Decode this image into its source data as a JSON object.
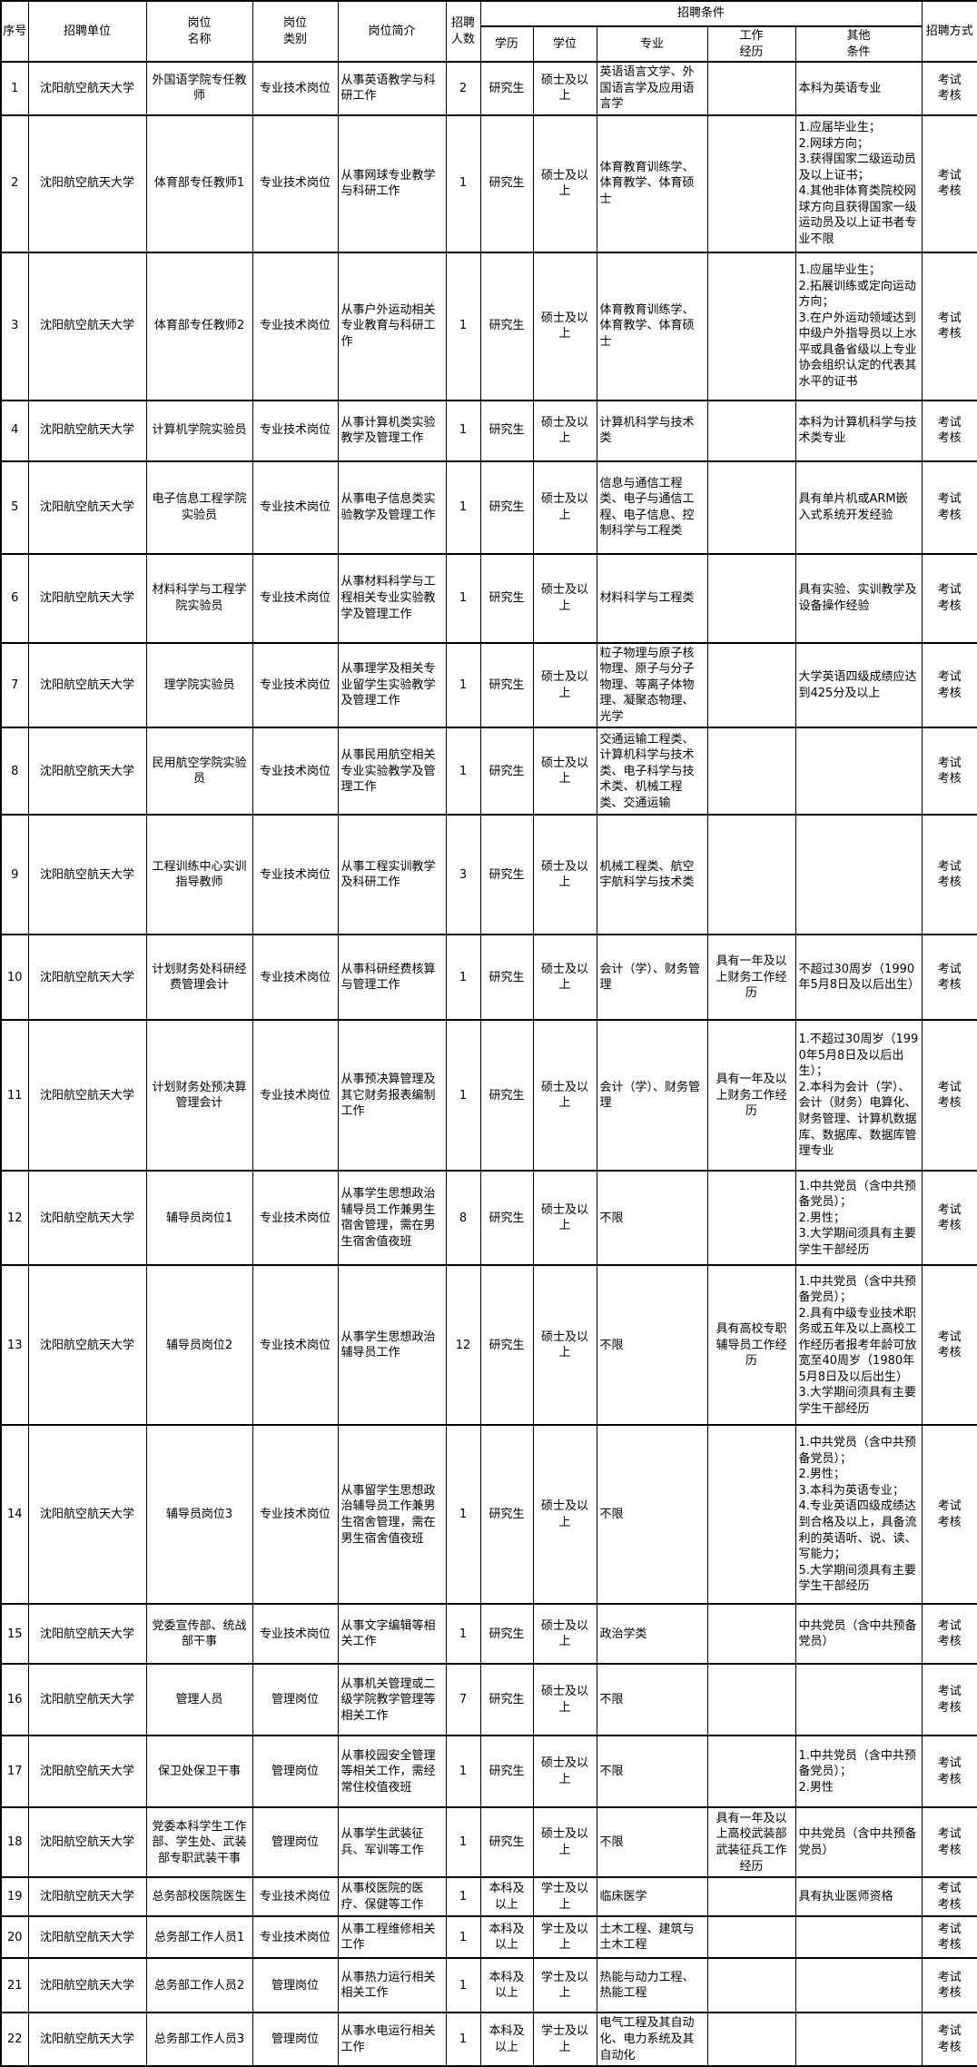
{
  "colors": {
    "background": "#ffffff",
    "border": "#000000",
    "text": "#000000"
  },
  "table": {
    "header": {
      "seq": "序号",
      "unit": "招聘单位",
      "post": "岗位\n名称",
      "category": "岗位\n类别",
      "desc": "岗位简介",
      "count": "招聘\n人数",
      "conditions_group": "招聘条件",
      "edu": "学历",
      "degree": "学位",
      "major": "专业",
      "exp": "工作\n经历",
      "other": "其他\n条件",
      "method": "招聘方式"
    },
    "rows": [
      {
        "seq": "1",
        "unit": "沈阳航空航天大学",
        "post": "外国语学院专任教师",
        "category": "专业技术岗位",
        "desc": "从事英语教学与科研工作",
        "count": "2",
        "edu": "研究生",
        "degree": "硕士及以上",
        "major": "英语语言文学、外国语言学及应用语言学",
        "exp": "",
        "other": "本科为英语专业",
        "method": "考试\n考核"
      },
      {
        "seq": "2",
        "unit": "沈阳航空航天大学",
        "post": "体育部专任教师1",
        "category": "专业技术岗位",
        "desc": "从事网球专业教学与科研工作",
        "count": "1",
        "edu": "研究生",
        "degree": "硕士及以上",
        "major": "体育教育训练学、体育教学、体育硕士",
        "exp": "",
        "other": "1.应届毕业生；\n2.网球方向；\n3.获得国家二级运动员及以上证书；\n4.其他非体育类院校网球方向且获得国家一级运动员及以上证书者专业不限",
        "method": "考试\n考核"
      },
      {
        "seq": "3",
        "unit": "沈阳航空航天大学",
        "post": "体育部专任教师2",
        "category": "专业技术岗位",
        "desc": "从事户外运动相关专业教育与科研工作",
        "count": "1",
        "edu": "研究生",
        "degree": "硕士及以上",
        "major": "体育教育训练学、体育教学、体育硕士",
        "exp": "",
        "other": "1.应届毕业生；\n2.拓展训练或定向运动方向；\n3.在户外运动领域达到中级户外指导员以上水平或具备省级以上专业协会组织认定的代表其水平的证书",
        "method": "考试\n考核"
      },
      {
        "seq": "4",
        "unit": "沈阳航空航天大学",
        "post": "计算机学院实验员",
        "category": "专业技术岗位",
        "desc": "从事计算机类实验教学及管理工作",
        "count": "1",
        "edu": "研究生",
        "degree": "硕士及以上",
        "major": "计算机科学与技术类",
        "exp": "",
        "other": "本科为计算机科学与技术类专业",
        "method": "考试\n考核"
      },
      {
        "seq": "5",
        "unit": "沈阳航空航天大学",
        "post": "电子信息工程学院实验员",
        "category": "专业技术岗位",
        "desc": "从事电子信息类实验教学及管理工作",
        "count": "1",
        "edu": "研究生",
        "degree": "硕士及以上",
        "major": "信息与通信工程类、电子与通信工程、电子信息、控制科学与工程类",
        "exp": "",
        "other": "具有单片机或ARM嵌入式系统开发经验",
        "method": "考试\n考核"
      },
      {
        "seq": "6",
        "unit": "沈阳航空航天大学",
        "post": "材料科学与工程学院实验员",
        "category": "专业技术岗位",
        "desc": "从事材料科学与工程相关专业实验教学及管理工作",
        "count": "1",
        "edu": "研究生",
        "degree": "硕士及以上",
        "major": "材料科学与工程类",
        "exp": "",
        "other": "具有实验、实训教学及设备操作经验",
        "method": "考试\n考核"
      },
      {
        "seq": "7",
        "unit": "沈阳航空航天大学",
        "post": "理学院实验员",
        "category": "专业技术岗位",
        "desc": "从事理学及相关专业留学生实验教学及管理工作",
        "count": "1",
        "edu": "研究生",
        "degree": "硕士及以上",
        "major": "粒子物理与原子核物理、原子与分子物理、等离子体物理、凝聚态物理、光学",
        "exp": "",
        "other": "大学英语四级成绩应达到425分及以上",
        "method": "考试\n考核"
      },
      {
        "seq": "8",
        "unit": "沈阳航空航天大学",
        "post": "民用航空学院实验员",
        "category": "专业技术岗位",
        "desc": "从事民用航空相关专业实验教学及管理工作",
        "count": "1",
        "edu": "研究生",
        "degree": "硕士及以上",
        "major": "交通运输工程类、计算机科学与技术类、电子科学与技术类、机械工程类、交通运输",
        "exp": "",
        "other": "",
        "method": "考试\n考核"
      },
      {
        "seq": "9",
        "unit": "沈阳航空航天大学",
        "post": "工程训练中心实训指导教师",
        "category": "专业技术岗位",
        "desc": "从事工程实训教学及科研工作",
        "count": "3",
        "edu": "研究生",
        "degree": "硕士及以上",
        "major": "机械工程类、航空宇航科学与技术类",
        "exp": "",
        "other": "",
        "method": "考试\n考核"
      },
      {
        "seq": "10",
        "unit": "沈阳航空航天大学",
        "post": "计划财务处科研经费管理会计",
        "category": "专业技术岗位",
        "desc": "从事科研经费核算与管理工作",
        "count": "1",
        "edu": "研究生",
        "degree": "硕士及以上",
        "major": "会计（学）、财务管理",
        "exp": "具有一年及以上财务工作经历",
        "other": "不超过30周岁（1990年5月8日及以后出生）",
        "method": "考试\n考核"
      },
      {
        "seq": "11",
        "unit": "沈阳航空航天大学",
        "post": "计划财务处预决算管理会计",
        "category": "专业技术岗位",
        "desc": "从事预决算管理及其它财务报表编制工作",
        "count": "1",
        "edu": "研究生",
        "degree": "硕士及以上",
        "major": "会计（学）、财务管理",
        "exp": "具有一年及以上财务工作经历",
        "other": "1.不超过30周岁（1990年5月8日及以后出生）；\n2.本科为会计（学）、会计（财务）电算化、财务管理、计算机数据库、数据库、数据库管理专业",
        "method": "考试\n考核"
      },
      {
        "seq": "12",
        "unit": "沈阳航空航天大学",
        "post": "辅导员岗位1",
        "category": "专业技术岗位",
        "desc": "从事学生思想政治辅导员工作兼男生宿舍管理，需在男生宿舍值夜班",
        "count": "8",
        "edu": "研究生",
        "degree": "硕士及以上",
        "major": "不限",
        "exp": "",
        "other": "1.中共党员（含中共预备党员）；\n2.男性；\n3.大学期间须具有主要学生干部经历",
        "method": "考试\n考核"
      },
      {
        "seq": "13",
        "unit": "沈阳航空航天大学",
        "post": "辅导员岗位2",
        "category": "专业技术岗位",
        "desc": "从事学生思想政治辅导员工作",
        "count": "12",
        "edu": "研究生",
        "degree": "硕士及以上",
        "major": "不限",
        "exp": "具有高校专职辅导员工作经历",
        "other": "1.中共党员（含中共预备党员）；\n2.具有中级专业技术职务或五年及以上高校工作经历者报考年龄可放宽至40周岁（1980年5月8日及以后出生）\n3.大学期间须具有主要学生干部经历",
        "method": "考试\n考核"
      },
      {
        "seq": "14",
        "unit": "沈阳航空航天大学",
        "post": "辅导员岗位3",
        "category": "专业技术岗位",
        "desc": "从事留学生思想政治辅导员工作兼男生宿舍管理，需在男生宿舍值夜班",
        "count": "1",
        "edu": "研究生",
        "degree": "硕士及以上",
        "major": "不限",
        "exp": "",
        "other": "1.中共党员（含中共预备党员）；\n2.男性；\n3.本科为英语专业；\n4.专业英语四级成绩达到合格及以上，具备流利的英语听、说、读、写能力；\n5.大学期间须具有主要学生干部经历",
        "method": "考试\n考核"
      },
      {
        "seq": "15",
        "unit": "沈阳航空航天大学",
        "post": "党委宣传部、统战部干事",
        "category": "专业技术岗位",
        "desc": "从事文字编辑等相关工作",
        "count": "1",
        "edu": "研究生",
        "degree": "硕士及以上",
        "major": "政治学类",
        "exp": "",
        "other": "中共党员（含中共预备党员）",
        "method": "考试\n考核"
      },
      {
        "seq": "16",
        "unit": "沈阳航空航天大学",
        "post": "管理人员",
        "category": "管理岗位",
        "desc": "从事机关管理或二级学院教学管理等相关工作",
        "count": "7",
        "edu": "研究生",
        "degree": "硕士及以上",
        "major": "不限",
        "exp": "",
        "other": "",
        "method": "考试\n考核"
      },
      {
        "seq": "17",
        "unit": "沈阳航空航天大学",
        "post": "保卫处保卫干事",
        "category": "管理岗位",
        "desc": "从事校园安全管理等相关工作，需经常住校值夜班",
        "count": "1",
        "edu": "研究生",
        "degree": "硕士及以上",
        "major": "不限",
        "exp": "",
        "other": "1.中共党员（含中共预备党员）；\n2.男性",
        "method": "考试\n考核"
      },
      {
        "seq": "18",
        "unit": "沈阳航空航天大学",
        "post": "党委本科学生工作部、学生处、武装部专职武装干事",
        "category": "管理岗位",
        "desc": "从事学生武装征兵、军训等工作",
        "count": "1",
        "edu": "研究生",
        "degree": "硕士及以上",
        "major": "不限",
        "exp": "具有一年及以上高校武装部武装征兵工作经历",
        "other": "中共党员（含中共预备党员）",
        "method": "考试\n考核"
      },
      {
        "seq": "19",
        "unit": "沈阳航空航天大学",
        "post": "总务部校医院医生",
        "category": "专业技术岗位",
        "desc": "从事校医院的医疗、保健等工作",
        "count": "1",
        "edu": "本科及以上",
        "degree": "学士及以上",
        "major": "临床医学",
        "exp": "",
        "other": "具有执业医师资格",
        "method": "考试\n考核"
      },
      {
        "seq": "20",
        "unit": "沈阳航空航天大学",
        "post": "总务部工作人员1",
        "category": "专业技术岗位",
        "desc": "从事工程维修相关工作",
        "count": "1",
        "edu": "本科及以上",
        "degree": "学士及以上",
        "major": "土木工程、建筑与土木工程",
        "exp": "",
        "other": "",
        "method": "考试\n考核"
      },
      {
        "seq": "21",
        "unit": "沈阳航空航天大学",
        "post": "总务部工作人员2",
        "category": "管理岗位",
        "desc": "从事热力运行相关相关工作",
        "count": "1",
        "edu": "本科及以上",
        "degree": "学士及以上",
        "major": "热能与动力工程、热能工程",
        "exp": "",
        "other": "",
        "method": "考试\n考核"
      },
      {
        "seq": "22",
        "unit": "沈阳航空航天大学",
        "post": "总务部工作人员3",
        "category": "管理岗位",
        "desc": "从事水电运行相关工作",
        "count": "1",
        "edu": "本科及以上",
        "degree": "学士及以上",
        "major": "电气工程及其自动化、电力系统及其自动化",
        "exp": "",
        "other": "",
        "method": "考试\n考核"
      }
    ]
  }
}
